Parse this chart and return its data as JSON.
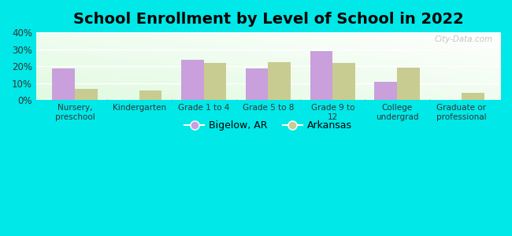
{
  "title": "School Enrollment by Level of School in 2022",
  "categories": [
    "Nursery,\npreschool",
    "Kindergarten",
    "Grade 1 to 4",
    "Grade 5 to 8",
    "Grade 9 to\n12",
    "College\nundergrad",
    "Graduate or\nprofessional"
  ],
  "bigelow_values": [
    18.5,
    0,
    24,
    18.5,
    29,
    11,
    0
  ],
  "arkansas_values": [
    6.5,
    5.5,
    22,
    22.5,
    22,
    19,
    4.5
  ],
  "bigelow_color": "#c9a0dc",
  "arkansas_color": "#c8cc90",
  "background_outer": "#00e8e8",
  "background_inner_topleft": "#d8ecd8",
  "background_inner_topright": "#f8fff8",
  "background_inner_bottom": "#e8f8e8",
  "ylim": [
    0,
    40
  ],
  "yticks": [
    0,
    10,
    20,
    30,
    40
  ],
  "ytick_labels": [
    "0%",
    "10%",
    "20%",
    "30%",
    "40%"
  ],
  "title_fontsize": 14,
  "legend_labels": [
    "Bigelow, AR",
    "Arkansas"
  ],
  "watermark": "City-Data.com",
  "bar_width": 0.35
}
